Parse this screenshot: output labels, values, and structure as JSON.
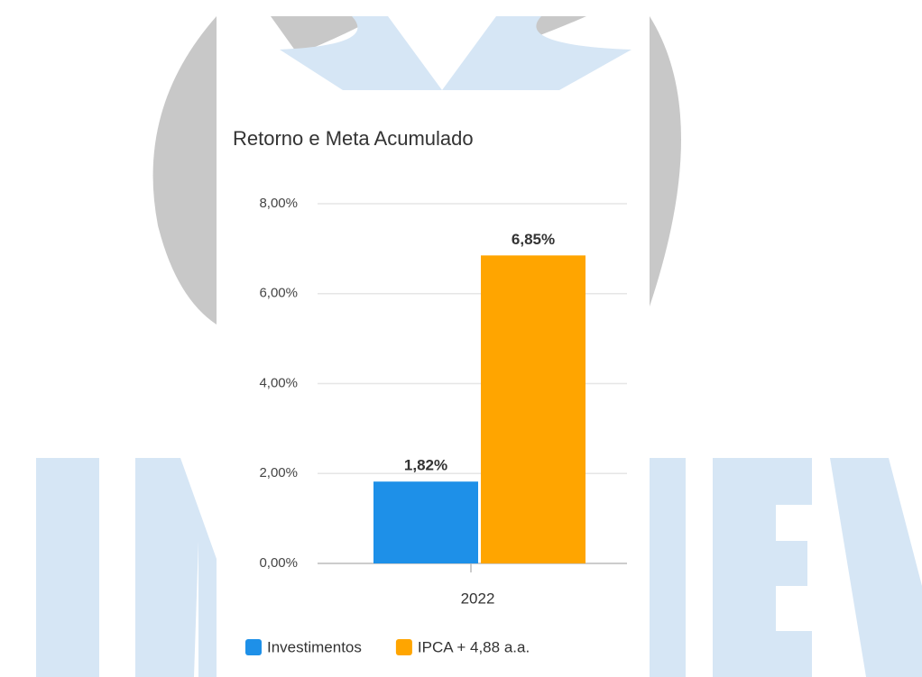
{
  "chart_data": {
    "type": "bar",
    "title": "Retorno e Meta Acumulado",
    "categories": [
      "2022"
    ],
    "series": [
      {
        "name": "Investimentos",
        "color": "#1e90e8",
        "values": [
          1.82
        ],
        "value_labels": [
          "1,82%"
        ]
      },
      {
        "name": "IPCA + 4,88 a.a.",
        "color": "#ffa500",
        "values": [
          6.85
        ],
        "value_labels": [
          "6,85%"
        ]
      }
    ],
    "ylim": [
      0,
      8
    ],
    "yticks": [
      {
        "value": 0,
        "label": "0,00%"
      },
      {
        "value": 2,
        "label": "2,00%"
      },
      {
        "value": 4,
        "label": "4,00%"
      },
      {
        "value": 6,
        "label": "6,00%"
      },
      {
        "value": 8,
        "label": "8,00%"
      }
    ],
    "grid": true,
    "legend": "bottom"
  }
}
